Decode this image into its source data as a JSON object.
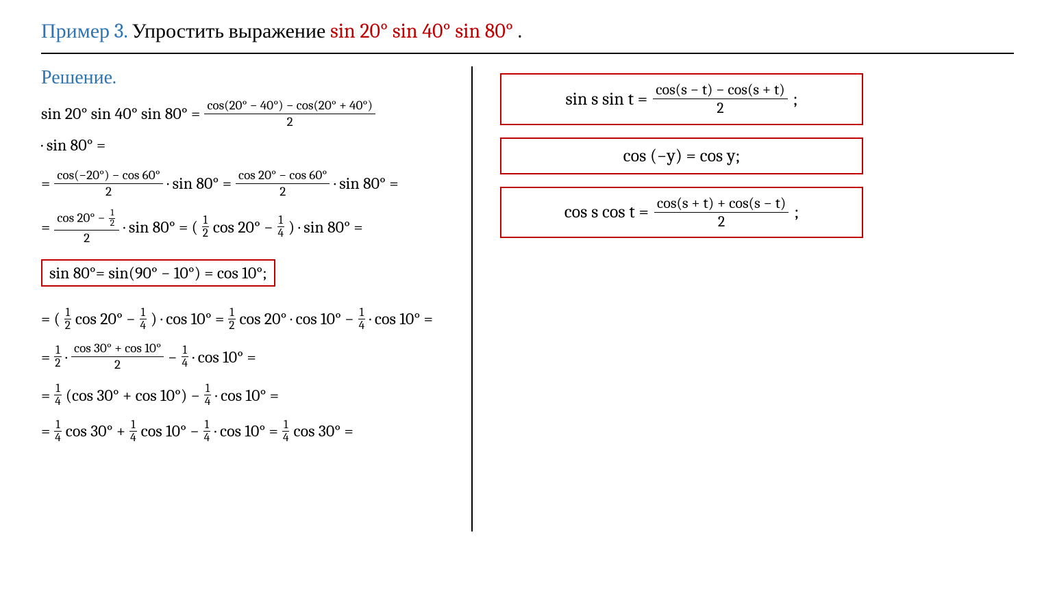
{
  "colors": {
    "blue": "#2e74b5",
    "red": "#c00000",
    "border": "#000000",
    "bg": "#ffffff"
  },
  "header": {
    "example_label": "Пример 3.",
    "stmt_before": " Упростить выражение ",
    "expression": "sin 20° sin 40° sin 80°",
    "period": "."
  },
  "solution_label": "Решение.",
  "lines": {
    "l1_a": "sin 20° sin 40° sin 80° = ",
    "l1_frac_num": "cos(20° − 40°) − cos(20° + 40°)",
    "l1_frac_den": "2",
    "l1_b": " · sin 80° =",
    "l2_a": "= ",
    "l2_f1_num": "cos(−20°) − cos 60°",
    "l2_f1_den": "2",
    "l2_b": " · sin 80° =  ",
    "l2_f2_num": "cos 20° − cos 60°",
    "l2_f2_den": "2",
    "l2_c": " · sin 80° =",
    "l3_a": "= ",
    "l3_f_num_a": "cos 20° − ",
    "l3_half_num": "1",
    "l3_half_den": "2",
    "l3_f_den": "2",
    "l3_b": " · sin 80° =  ( ",
    "l3_sf1_num": "1",
    "l3_sf1_den": "2",
    "l3_c": " cos 20° − ",
    "l3_sf2_num": "1",
    "l3_sf2_den": "4",
    "l3_d": " ) ·  sin 80° =",
    "boxed_main": "sin 80°= sin(90° − 10°) = cos 10°;",
    "l4_a": "= ( ",
    "l4_sf1_num": "1",
    "l4_sf1_den": "2",
    "l4_b": " cos 20° − ",
    "l4_sf2_num": "1",
    "l4_sf2_den": "4",
    "l4_c": " ) ·  cos 10° =   ",
    "l4_sf3_num": "1",
    "l4_sf3_den": "2",
    "l4_d": "  cos 20° ·  cos 10° − ",
    "l4_sf4_num": "1",
    "l4_sf4_den": "4",
    "l4_e": " ·  cos 10° =",
    "l5_a": "= ",
    "l5_sf1_num": "1",
    "l5_sf1_den": "2",
    "l5_b": " · ",
    "l5_f_num": "cos  30° + cos  10°",
    "l5_f_den": "2",
    "l5_c": " − ",
    "l5_sf2_num": "1",
    "l5_sf2_den": "4",
    "l5_d": " ·  cos 10° =",
    "l6_a": "= ",
    "l6_sf1_num": "1",
    "l6_sf1_den": "4",
    "l6_b": "  (cos 30° +  cos 10°) − ",
    "l6_sf2_num": "1",
    "l6_sf2_den": "4",
    "l6_c": " ·  cos 10° =",
    "l7_a": "= ",
    "l7_sf1_num": "1",
    "l7_sf1_den": "4",
    "l7_b": "  cos 30° + ",
    "l7_sf2_num": "1",
    "l7_sf2_den": "4",
    "l7_c": "  cos 10° − ",
    "l7_sf3_num": "1",
    "l7_sf3_den": "4",
    "l7_d": " ·  cos 10° = ",
    "l7_sf4_num": "1",
    "l7_sf4_den": "4",
    "l7_e": "  cos 30° ="
  },
  "formulas": {
    "f1_lhs": "sin s sin t = ",
    "f1_num": "cos(s − t) − cos(s + t)",
    "f1_den": "2",
    "f1_tail": ";",
    "f2": "cos (−y) = cos y;",
    "f3_lhs": "cos s cos t =  ",
    "f3_num": "cos(s + t) + cos(s − t)",
    "f3_den": "2",
    "f3_tail": ";"
  }
}
